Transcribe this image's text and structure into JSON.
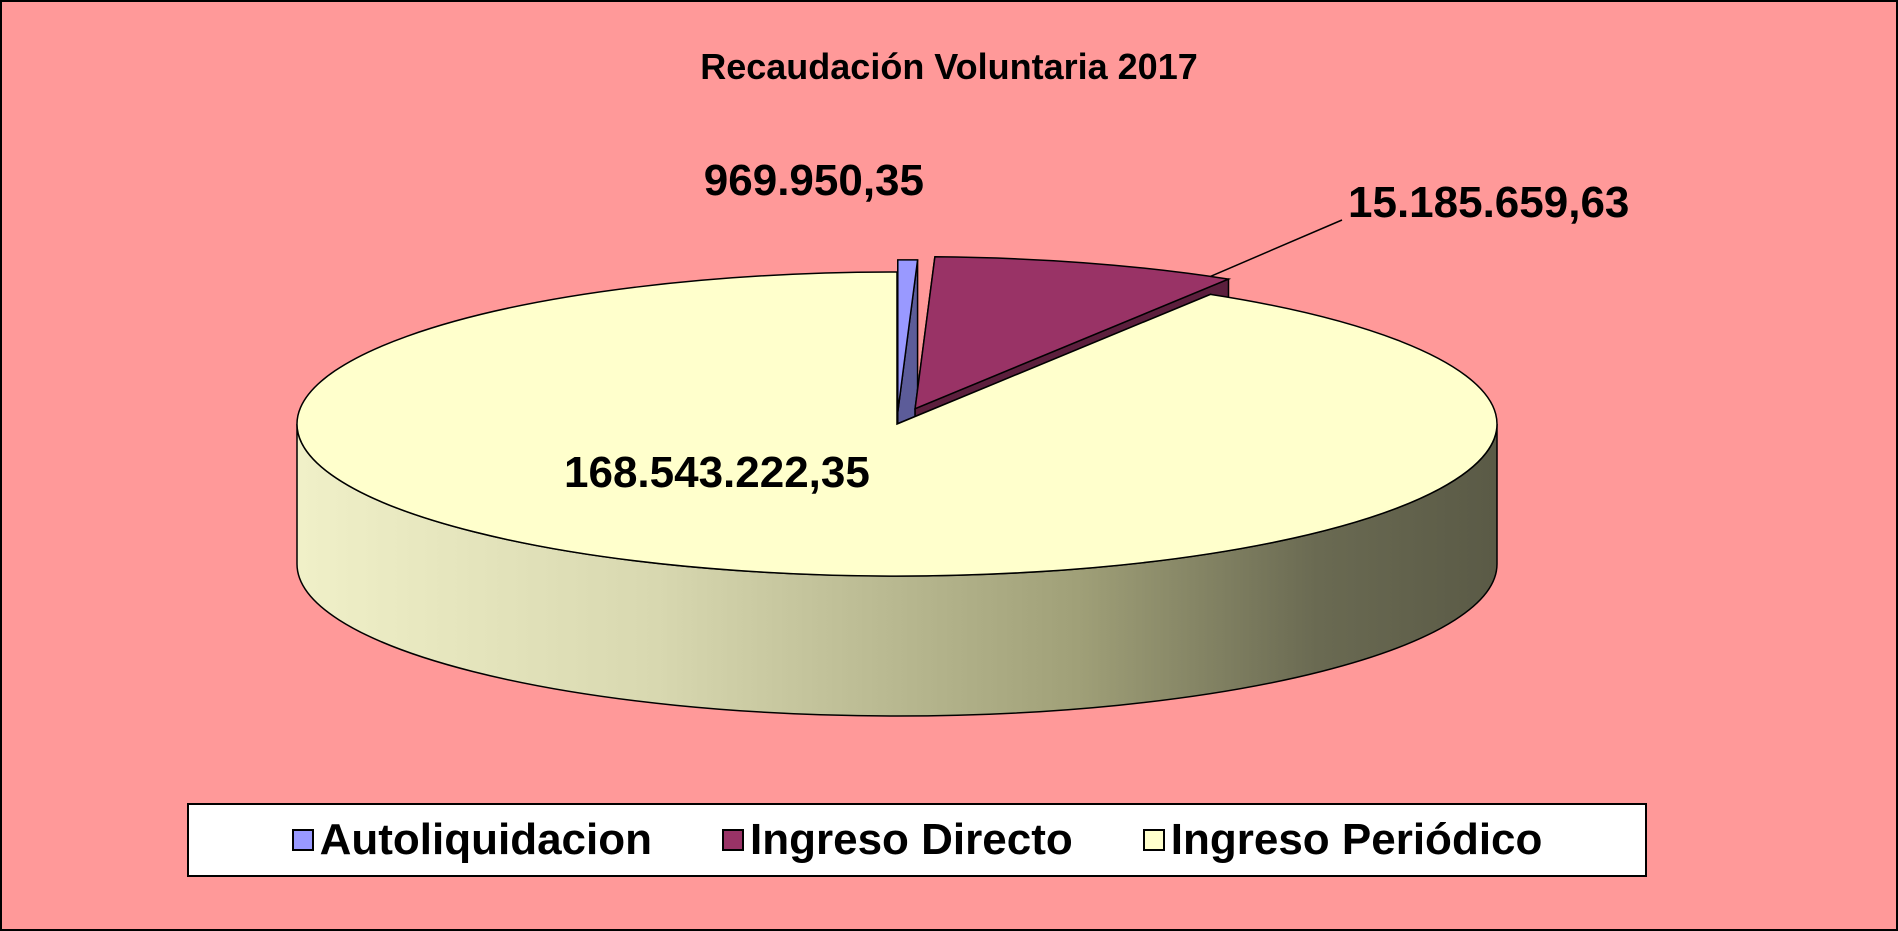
{
  "chart_data": {
    "type": "pie",
    "title": "Recaudación Voluntaria 2017",
    "slices": [
      {
        "name": "Autoliquidacion",
        "value": 969950.35,
        "label": "969.950,35",
        "color": "#9999ff"
      },
      {
        "name": "Ingreso Directo",
        "value": 15185659.63,
        "label": "15.185.659,63",
        "color": "#993366"
      },
      {
        "name": "Ingreso Periódico",
        "value": 168543222.35,
        "label": "168.543.222,35",
        "color": "#ffffcc"
      }
    ],
    "style": "3d-exploded",
    "legend_position": "bottom",
    "background_color": "#ff9999"
  }
}
